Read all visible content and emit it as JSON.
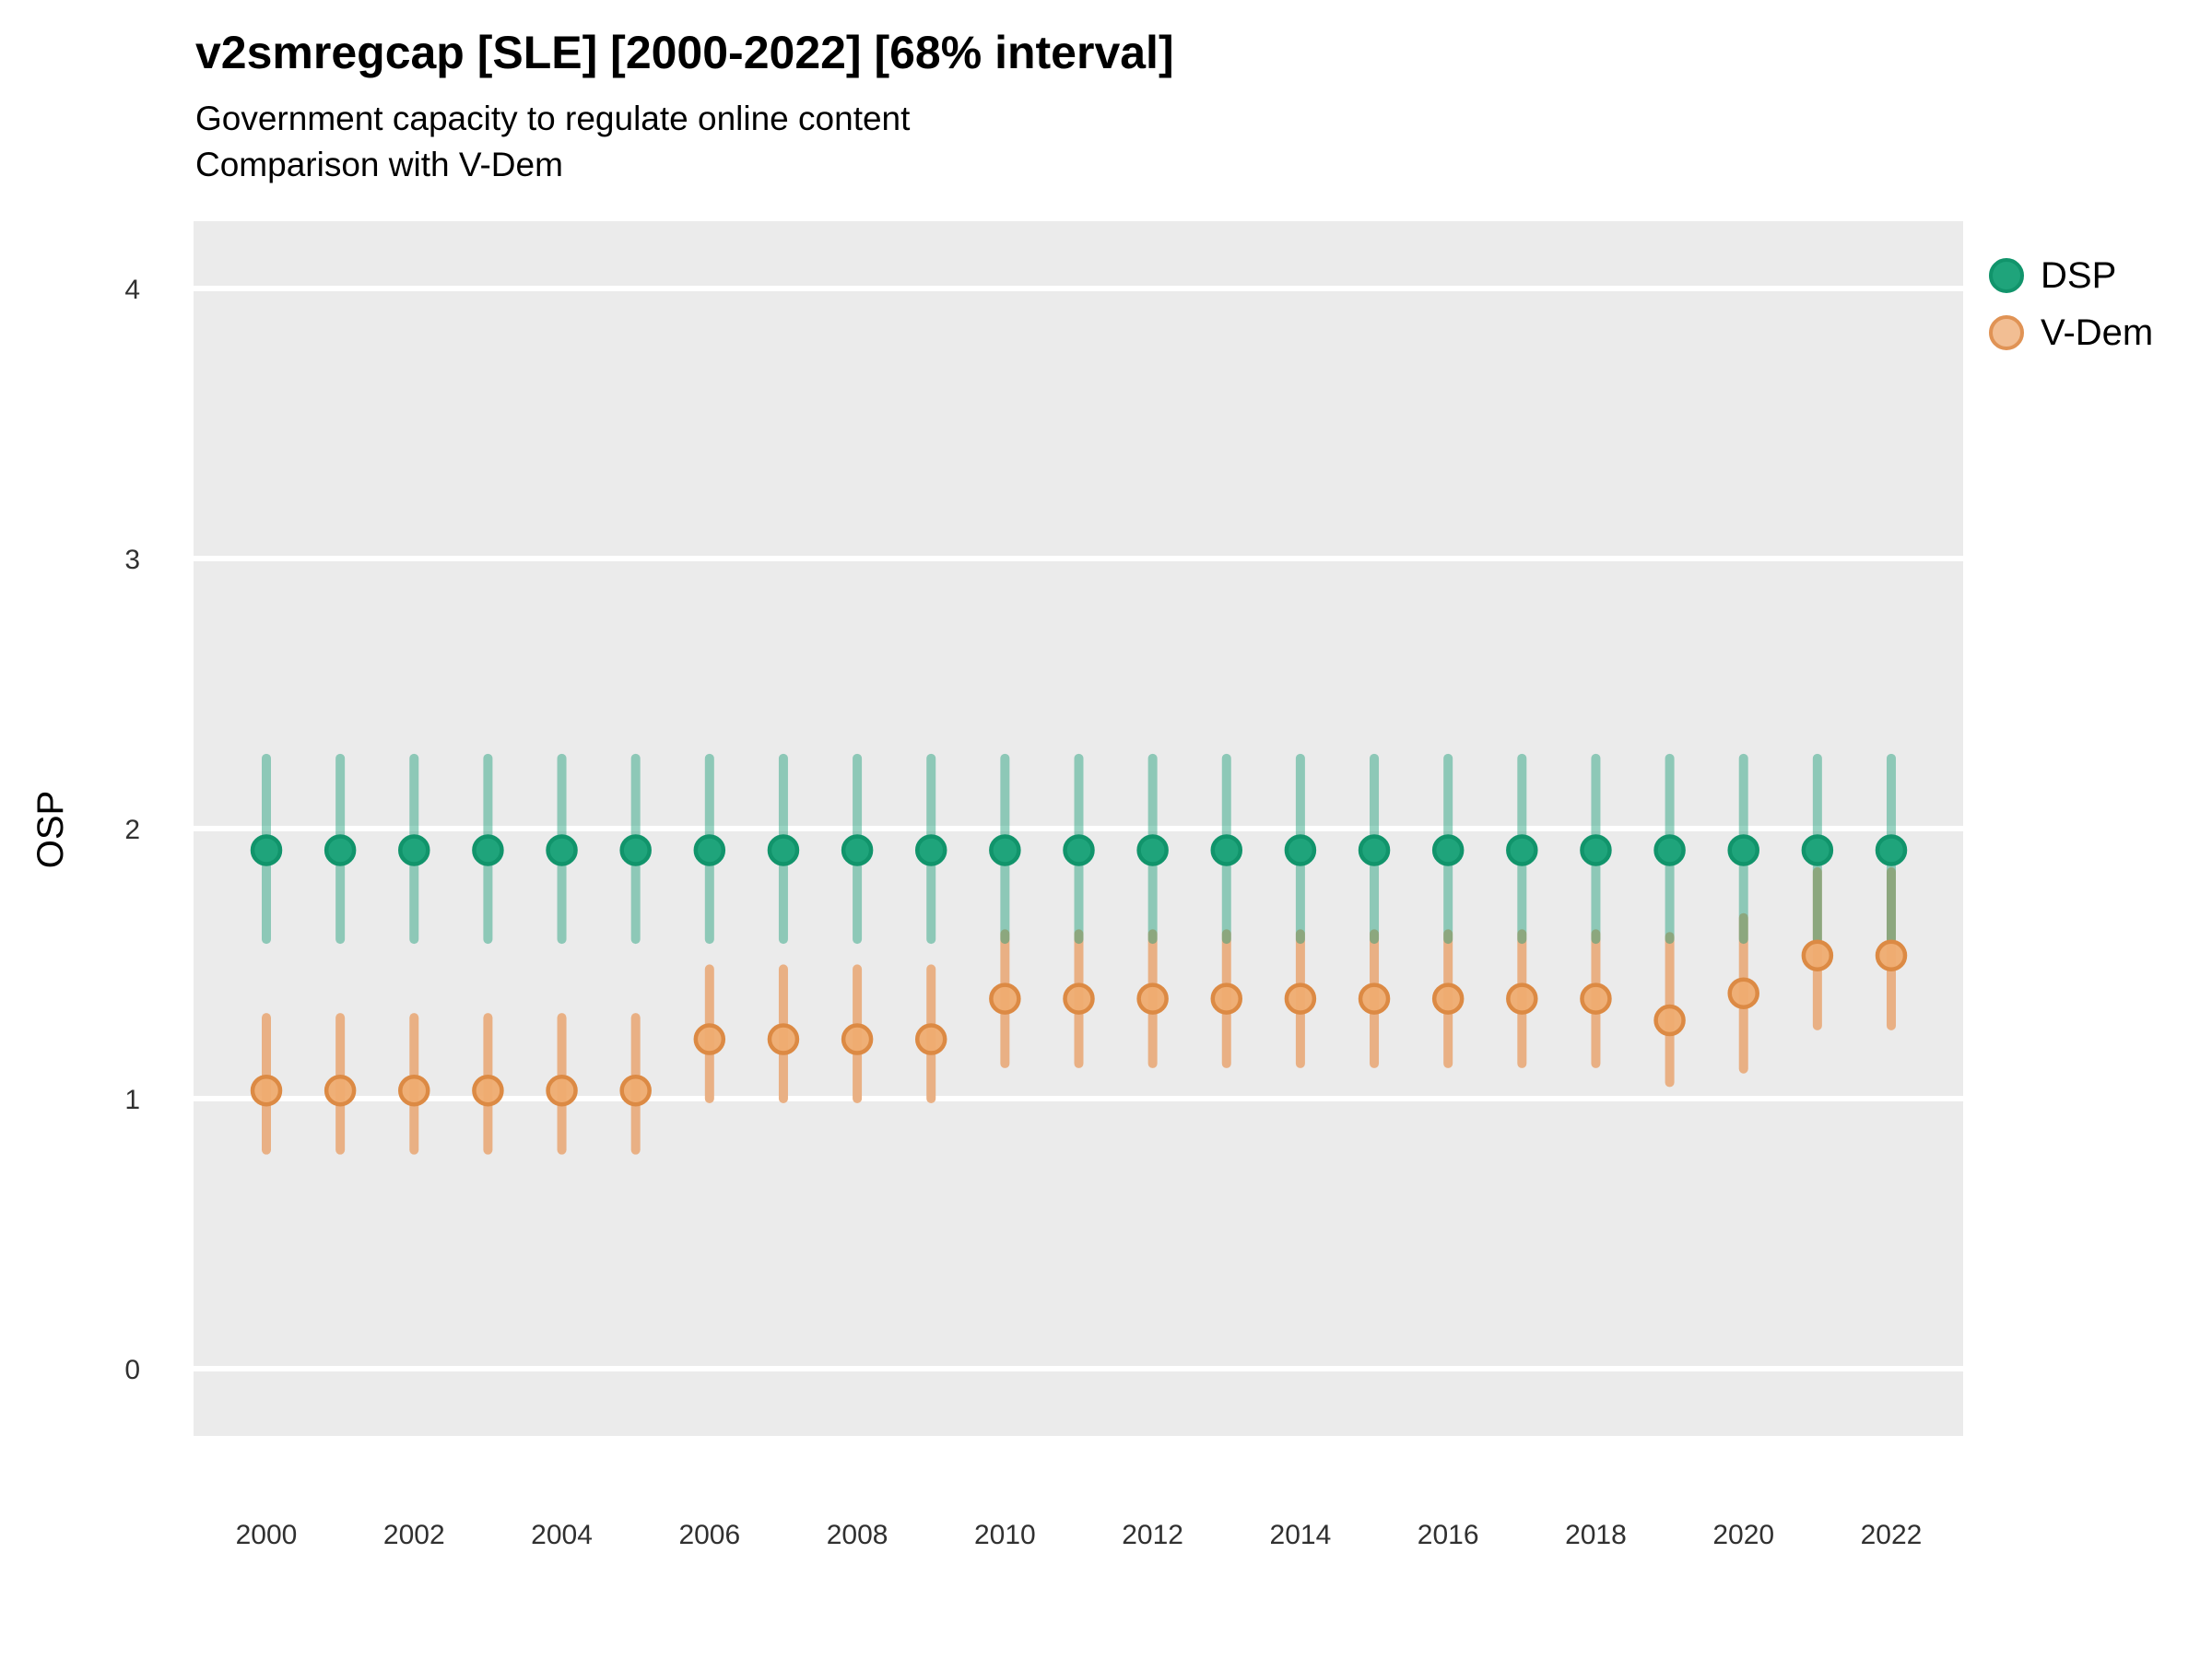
{
  "header": {
    "title": "v2smregcap [SLE] [2000-2022] [68% interval]",
    "subtitle_line1": "Government capacity to regulate online content",
    "subtitle_line2": "Comparison with V-Dem"
  },
  "axes": {
    "y_label": "OSP",
    "y_tick_labels": [
      "0",
      "1",
      "2",
      "3",
      "4"
    ],
    "x_tick_labels": [
      "2000",
      "2002",
      "2004",
      "2006",
      "2008",
      "2010",
      "2012",
      "2014",
      "2016",
      "2018",
      "2020",
      "2022"
    ]
  },
  "legend": {
    "position": "right",
    "items": [
      {
        "label": "DSP",
        "swatch_fill": "#1FA47B",
        "swatch_stroke": "#11946B"
      },
      {
        "label": "V-Dem",
        "swatch_fill": "#F2BE93",
        "swatch_stroke": "#E09355"
      }
    ]
  },
  "palette": {
    "panel_background": "#EBEBEB",
    "gridline": "#FFFFFF",
    "axis_text": "#303030",
    "dsp_color": "#1B9E77",
    "dsp_bar": "rgba(27,158,119,0.45)",
    "dsp_point_fill": "#1FA47B",
    "dsp_point_stroke": "#11946B",
    "vdem_color": "#E0821E",
    "vdem_bar": "#E9B084",
    "vdem_point_fill": "#EFAC70",
    "vdem_point_stroke": "#DC8A44"
  },
  "chart_data": {
    "type": "pointrange",
    "title": "v2smregcap [SLE] [2000-2022] [68% interval]",
    "subtitle": "Government capacity to regulate online content — Comparison with V-Dem",
    "interval": "68%",
    "country": "SLE",
    "xlabel": "",
    "ylabel": "OSP",
    "ylim": [
      -0.25,
      4.25
    ],
    "yticks": [
      0,
      1,
      2,
      3,
      4
    ],
    "xticks": [
      2000,
      2002,
      2004,
      2006,
      2008,
      2010,
      2012,
      2014,
      2016,
      2018,
      2020,
      2022
    ],
    "grid": true,
    "legend_position": "right",
    "x": [
      2000,
      2001,
      2002,
      2003,
      2004,
      2005,
      2006,
      2007,
      2008,
      2009,
      2010,
      2011,
      2012,
      2013,
      2014,
      2015,
      2016,
      2017,
      2018,
      2019,
      2020,
      2021,
      2022
    ],
    "series": [
      {
        "name": "DSP",
        "estimates": [
          1.92,
          1.92,
          1.92,
          1.92,
          1.92,
          1.92,
          1.92,
          1.92,
          1.92,
          1.92,
          1.92,
          1.92,
          1.92,
          1.92,
          1.92,
          1.92,
          1.92,
          1.92,
          1.92,
          1.92,
          1.92,
          1.92,
          1.92
        ],
        "lower": [
          1.59,
          1.59,
          1.59,
          1.59,
          1.59,
          1.59,
          1.59,
          1.59,
          1.59,
          1.59,
          1.59,
          1.59,
          1.59,
          1.59,
          1.59,
          1.59,
          1.59,
          1.59,
          1.59,
          1.59,
          1.59,
          1.59,
          1.59
        ],
        "upper": [
          2.26,
          2.26,
          2.26,
          2.26,
          2.26,
          2.26,
          2.26,
          2.26,
          2.26,
          2.26,
          2.26,
          2.26,
          2.26,
          2.26,
          2.26,
          2.26,
          2.26,
          2.26,
          2.26,
          2.26,
          2.26,
          2.26,
          2.26
        ]
      },
      {
        "name": "V-Dem",
        "estimates": [
          1.03,
          1.03,
          1.03,
          1.03,
          1.03,
          1.03,
          1.22,
          1.22,
          1.22,
          1.22,
          1.37,
          1.37,
          1.37,
          1.37,
          1.37,
          1.37,
          1.37,
          1.37,
          1.37,
          1.29,
          1.39,
          1.53,
          1.53
        ],
        "lower": [
          0.81,
          0.81,
          0.81,
          0.81,
          0.81,
          0.81,
          1.0,
          1.0,
          1.0,
          1.0,
          1.13,
          1.13,
          1.13,
          1.13,
          1.13,
          1.13,
          1.13,
          1.13,
          1.13,
          1.06,
          1.11,
          1.27,
          1.27
        ],
        "upper": [
          1.3,
          1.3,
          1.3,
          1.3,
          1.3,
          1.3,
          1.48,
          1.48,
          1.48,
          1.48,
          1.61,
          1.61,
          1.61,
          1.61,
          1.61,
          1.61,
          1.61,
          1.61,
          1.61,
          1.6,
          1.67,
          1.84,
          1.84
        ]
      }
    ]
  }
}
